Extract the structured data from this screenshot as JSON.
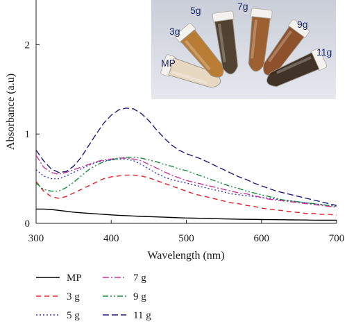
{
  "chart_data": {
    "type": "line",
    "xlabel": "Wavelength (nm)",
    "ylabel": "Absorbance (a.u)",
    "xlim": [
      300,
      700
    ],
    "ylim": [
      0,
      2.5
    ],
    "xticks": [
      300,
      400,
      500,
      600,
      700
    ],
    "yticks": [
      0,
      1,
      2
    ],
    "grid": false,
    "legend_position": "bottom",
    "x": [
      300,
      310,
      320,
      330,
      340,
      350,
      360,
      370,
      380,
      390,
      400,
      410,
      420,
      430,
      440,
      450,
      460,
      470,
      480,
      490,
      500,
      510,
      520,
      530,
      540,
      550,
      560,
      570,
      580,
      590,
      600,
      610,
      620,
      630,
      640,
      650,
      660,
      670,
      680,
      690,
      700
    ],
    "series": [
      {
        "name": "MP",
        "color": "#000000",
        "dash": "",
        "values": [
          0.16,
          0.16,
          0.155,
          0.145,
          0.135,
          0.125,
          0.118,
          0.112,
          0.106,
          0.1,
          0.095,
          0.09,
          0.086,
          0.082,
          0.078,
          0.075,
          0.072,
          0.069,
          0.066,
          0.063,
          0.06,
          0.058,
          0.056,
          0.054,
          0.052,
          0.05,
          0.048,
          0.046,
          0.045,
          0.044,
          0.043,
          0.042,
          0.041,
          0.04,
          0.039,
          0.038,
          0.037,
          0.036,
          0.035,
          0.035,
          0.035
        ]
      },
      {
        "name": "3 g",
        "color": "#e8202a",
        "dash": "7,5",
        "values": [
          0.47,
          0.36,
          0.3,
          0.28,
          0.3,
          0.34,
          0.38,
          0.42,
          0.46,
          0.5,
          0.52,
          0.53,
          0.54,
          0.54,
          0.53,
          0.51,
          0.48,
          0.45,
          0.42,
          0.39,
          0.36,
          0.33,
          0.31,
          0.29,
          0.27,
          0.25,
          0.23,
          0.22,
          0.2,
          0.19,
          0.17,
          0.16,
          0.15,
          0.14,
          0.13,
          0.12,
          0.11,
          0.11,
          0.1,
          0.1,
          0.09
        ]
      },
      {
        "name": "5 g",
        "color": "#3434c8",
        "dash": "2,3",
        "values": [
          0.6,
          0.53,
          0.5,
          0.5,
          0.53,
          0.57,
          0.61,
          0.65,
          0.68,
          0.7,
          0.71,
          0.72,
          0.72,
          0.7,
          0.66,
          0.61,
          0.56,
          0.52,
          0.49,
          0.47,
          0.45,
          0.43,
          0.41,
          0.39,
          0.37,
          0.35,
          0.33,
          0.32,
          0.31,
          0.3,
          0.29,
          0.28,
          0.27,
          0.26,
          0.25,
          0.24,
          0.23,
          0.22,
          0.21,
          0.2,
          0.19
        ]
      },
      {
        "name": "7 g",
        "color": "#cc3399",
        "dash": "9,3,2,3",
        "values": [
          0.76,
          0.63,
          0.57,
          0.55,
          0.57,
          0.6,
          0.63,
          0.66,
          0.69,
          0.71,
          0.72,
          0.73,
          0.73,
          0.72,
          0.7,
          0.66,
          0.62,
          0.58,
          0.54,
          0.51,
          0.48,
          0.46,
          0.44,
          0.42,
          0.4,
          0.38,
          0.36,
          0.34,
          0.33,
          0.31,
          0.29,
          0.27,
          0.26,
          0.25,
          0.24,
          0.23,
          0.22,
          0.21,
          0.2,
          0.19,
          0.18
        ]
      },
      {
        "name": "9 g",
        "color": "#1a8a3a",
        "dash": "8,3,2,3,2,3",
        "values": [
          0.45,
          0.38,
          0.36,
          0.36,
          0.4,
          0.46,
          0.53,
          0.6,
          0.65,
          0.69,
          0.71,
          0.73,
          0.74,
          0.74,
          0.73,
          0.71,
          0.69,
          0.66,
          0.64,
          0.61,
          0.59,
          0.56,
          0.53,
          0.5,
          0.47,
          0.44,
          0.41,
          0.39,
          0.36,
          0.34,
          0.32,
          0.3,
          0.28,
          0.26,
          0.25,
          0.24,
          0.23,
          0.22,
          0.21,
          0.2,
          0.19
        ]
      },
      {
        "name": "11 g",
        "color": "#1c1c7a",
        "dash": "9,4",
        "values": [
          0.82,
          0.7,
          0.61,
          0.57,
          0.58,
          0.64,
          0.74,
          0.87,
          1.0,
          1.12,
          1.21,
          1.27,
          1.29,
          1.28,
          1.23,
          1.15,
          1.05,
          0.96,
          0.88,
          0.82,
          0.78,
          0.75,
          0.72,
          0.68,
          0.64,
          0.6,
          0.56,
          0.52,
          0.49,
          0.45,
          0.42,
          0.39,
          0.36,
          0.34,
          0.32,
          0.3,
          0.28,
          0.26,
          0.24,
          0.22,
          0.2
        ]
      }
    ]
  },
  "photo": {
    "labels": [
      "MP",
      "3g",
      "5g",
      "7g",
      "9g",
      "11g"
    ],
    "label_color": "#1f2a6b",
    "tube_colors": [
      "#e8d8c0",
      "#b8782c",
      "#4a3a28",
      "#9a5a28",
      "#8a4a22",
      "#3a2a1e"
    ],
    "background_color": "#d8dce4"
  }
}
